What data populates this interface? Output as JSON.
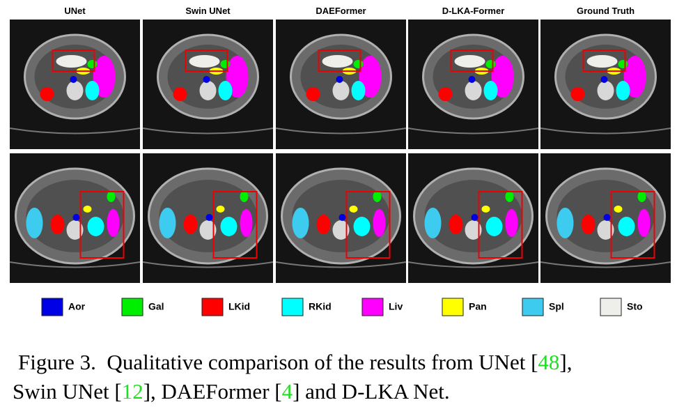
{
  "figure": {
    "columns": [
      "UNet",
      "Swin UNet",
      "DAEFormer",
      "D-LKA-Former",
      "Ground Truth"
    ],
    "legend": [
      {
        "name": "Aor",
        "color": "#0000e6"
      },
      {
        "name": "Gal",
        "color": "#00ee00"
      },
      {
        "name": "LKid",
        "color": "#ff0000"
      },
      {
        "name": "RKid",
        "color": "#00ffff"
      },
      {
        "name": "Liv",
        "color": "#ff00ff"
      },
      {
        "name": "Pan",
        "color": "#ffff00"
      },
      {
        "name": "Spl",
        "color": "#3ecbf0"
      },
      {
        "name": "Sto",
        "color": "#eeeeea"
      }
    ],
    "caption": [
      [
        {
          "text": "Figure 3.  Qualitative comparison of the results from UNet ["
        },
        {
          "cite": "48"
        },
        {
          "text": "],"
        }
      ],
      [
        {
          "text": "Swin UNet ["
        },
        {
          "cite": "12"
        },
        {
          "text": "], DAEFormer ["
        },
        {
          "cite": "4"
        },
        {
          "text": "] and D-LKA Net."
        }
      ]
    ]
  }
}
